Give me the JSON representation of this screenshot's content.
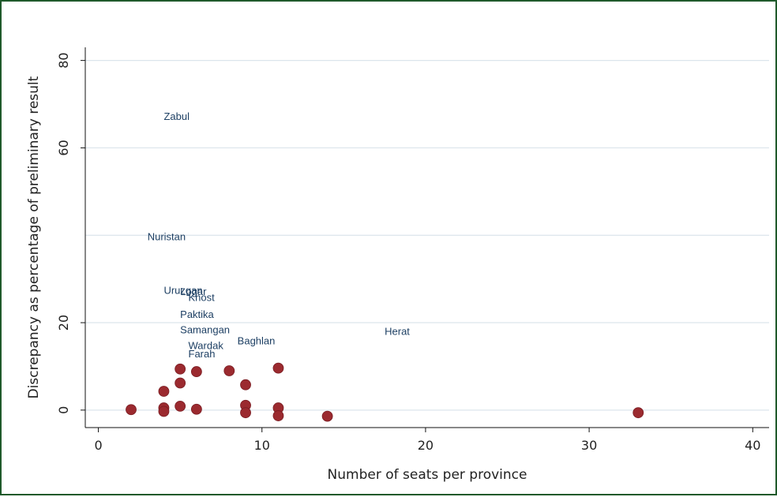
{
  "chart_data": {
    "type": "scatter",
    "xlabel": "Number of seats per province",
    "ylabel": "Discrepancy as percentage of preliminary result",
    "xlim": [
      -0.8,
      41
    ],
    "ylim": [
      -4,
      83
    ],
    "xticks": [
      0,
      10,
      20,
      30,
      40
    ],
    "yticks": [
      0,
      20,
      60,
      80
    ],
    "grid_lines_y": [
      0,
      20,
      40,
      60,
      80
    ],
    "grid": true,
    "background": "#ffffff",
    "colors": {
      "frame": "#1f5a2b",
      "marker": "#9b2a2f",
      "label_text": "#1d3f63",
      "grid": "#dce5ec"
    },
    "markers": [
      {
        "x": 2,
        "y": 0.1
      },
      {
        "x": 4,
        "y": 4.3
      },
      {
        "x": 4,
        "y": 0.5
      },
      {
        "x": 4,
        "y": -0.3
      },
      {
        "x": 5,
        "y": 9.4
      },
      {
        "x": 5,
        "y": 6.2
      },
      {
        "x": 5,
        "y": 0.9
      },
      {
        "x": 6,
        "y": 8.8
      },
      {
        "x": 6,
        "y": 0.2
      },
      {
        "x": 8,
        "y": 9
      },
      {
        "x": 9,
        "y": 5.8
      },
      {
        "x": 9,
        "y": 1.1
      },
      {
        "x": 9,
        "y": -0.6
      },
      {
        "x": 11,
        "y": 9.6
      },
      {
        "x": 11,
        "y": 0.5
      },
      {
        "x": 11,
        "y": -1.3
      },
      {
        "x": 14,
        "y": -1.4
      },
      {
        "x": 33,
        "y": -0.6
      }
    ],
    "labeled_points": [
      {
        "label": "Zabul",
        "x": 4,
        "y": 67
      },
      {
        "label": "Nuristan",
        "x": 3,
        "y": 39.5
      },
      {
        "label": "Uruzgan",
        "x": 4,
        "y": 27.2
      },
      {
        "label": "Logar",
        "x": 5,
        "y": 26.9
      },
      {
        "label": "Khost",
        "x": 5.5,
        "y": 25.6
      },
      {
        "label": "Paktika",
        "x": 5,
        "y": 21.7
      },
      {
        "label": "Samangan",
        "x": 5,
        "y": 18.2
      },
      {
        "label": "Wardak",
        "x": 5.5,
        "y": 14.6
      },
      {
        "label": "Farah",
        "x": 5.5,
        "y": 12.7
      },
      {
        "label": "Baghlan",
        "x": 8.5,
        "y": 15.7
      },
      {
        "label": "Herat",
        "x": 17.5,
        "y": 17.8
      }
    ]
  }
}
